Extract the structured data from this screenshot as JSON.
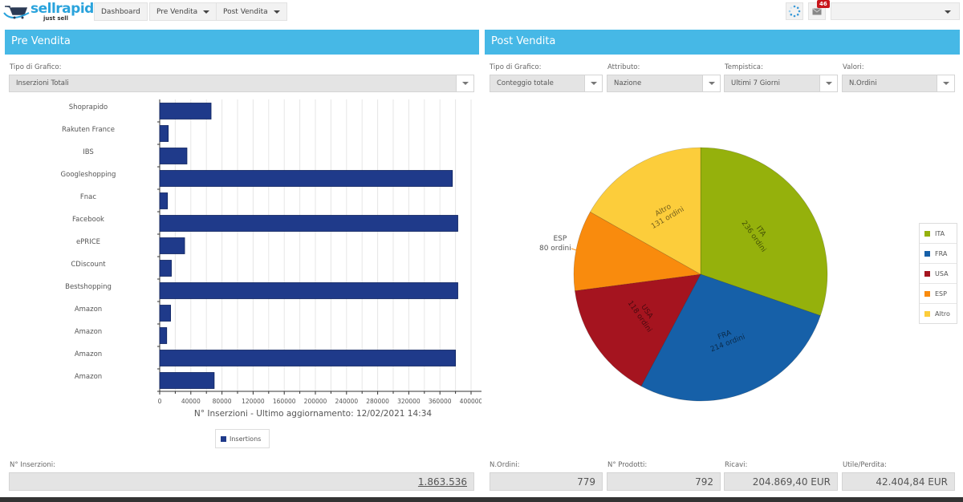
{
  "topbar": {
    "logo_text": "sellrapido",
    "logo_tagline": "just sell",
    "nav": [
      {
        "label": "Dashboard",
        "has_dropdown": false
      },
      {
        "label": "Pre Vendita",
        "has_dropdown": true
      },
      {
        "label": "Post Vendita",
        "has_dropdown": true
      }
    ],
    "icons": [
      "loading-spinner-icon",
      "mail-icon"
    ],
    "notification_count": "46",
    "user_select_value": ""
  },
  "pre_vendita": {
    "title": "Pre Vendita",
    "chart_type_label": "Tipo di Grafico:",
    "chart_type_value": "Inserzioni Totali",
    "total_label": "N° Inserzioni:",
    "total_value": "1.863.536"
  },
  "post_vendita": {
    "title": "Post Vendita",
    "filters": [
      {
        "label": "Tipo di Grafico:",
        "value": "Conteggio totale"
      },
      {
        "label": "Attributo:",
        "value": "Nazione"
      },
      {
        "label": "Tempistica:",
        "value": "Ultimi 7 Giorni"
      },
      {
        "label": "Valori:",
        "value": "N.Ordini"
      }
    ],
    "stats": [
      {
        "label": "N.Ordini:",
        "value": "779"
      },
      {
        "label": "N° Prodotti:",
        "value": "792"
      },
      {
        "label": "Ricavi:",
        "value": "204.869,40 EUR"
      },
      {
        "label": "Utile/Perdita:",
        "value": "42.404,84 EUR"
      }
    ]
  },
  "chart_data": [
    {
      "type": "bar",
      "orientation": "horizontal",
      "title": "",
      "xlabel": "N° Inserzioni - Ultimo aggiornamento: 12/02/2021 14:34",
      "ylabel": "",
      "categories": [
        "Shoprapido",
        "Rakuten France",
        "IBS",
        "Googleshopping",
        "Fnac",
        "Facebook",
        "ePRICE",
        "CDiscount",
        "Bestshopping",
        "Amazon",
        "Amazon",
        "Amazon",
        "Amazon"
      ],
      "series": [
        {
          "name": "Insertions",
          "color": "#1f3a8a",
          "values": [
            66000,
            11000,
            35000,
            376000,
            10000,
            383000,
            32000,
            15000,
            383000,
            14000,
            9000,
            380000,
            70000
          ]
        }
      ],
      "xlim": [
        0,
        420000
      ],
      "xticks": [
        0,
        40000,
        80000,
        120000,
        160000,
        200000,
        240000,
        280000,
        320000,
        360000,
        400000
      ],
      "grid": true,
      "legend": "bottom-center"
    },
    {
      "type": "pie",
      "title": "",
      "slices": [
        {
          "label": "ITA",
          "value": 236,
          "text": "236 ordini",
          "color": "#95b10c"
        },
        {
          "label": "FRA",
          "value": 214,
          "text": "214 ordini",
          "color": "#1660a8"
        },
        {
          "label": "USA",
          "value": 118,
          "text": "118 ordini",
          "color": "#a5141f"
        },
        {
          "label": "ESP",
          "value": 80,
          "text": "80 ordini",
          "color": "#f98b0d"
        },
        {
          "label": "Altro",
          "value": 131,
          "text": "131 ordini",
          "color": "#fccd3b"
        }
      ],
      "legend": "right"
    }
  ]
}
